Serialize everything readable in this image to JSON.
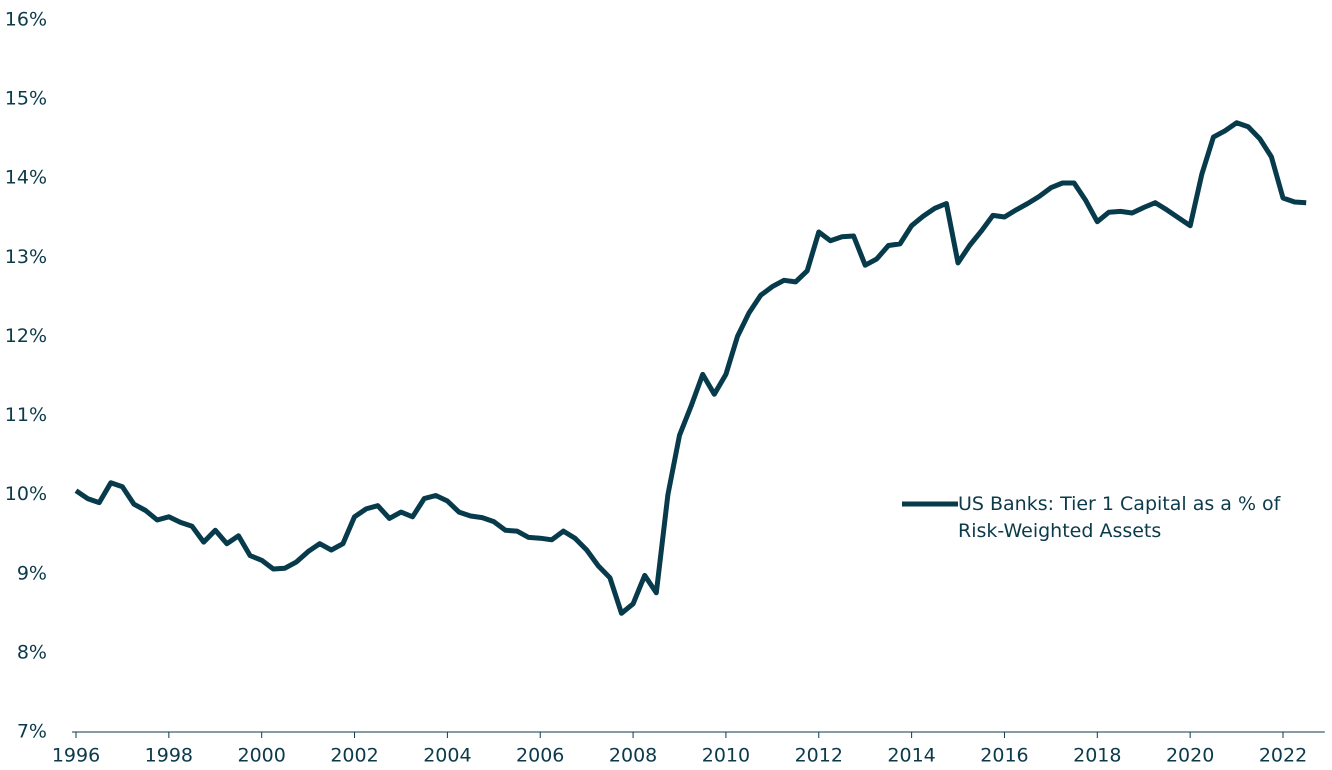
{
  "chart_data": {
    "type": "line",
    "x": [
      1996,
      1996.25,
      1996.5,
      1996.75,
      1997,
      1997.25,
      1997.5,
      1997.75,
      1998,
      1998.25,
      1998.5,
      1998.75,
      1999,
      1999.25,
      1999.5,
      1999.75,
      2000,
      2000.25,
      2000.5,
      2000.75,
      2001,
      2001.25,
      2001.5,
      2001.75,
      2002,
      2002.25,
      2002.5,
      2002.75,
      2003,
      2003.25,
      2003.5,
      2003.75,
      2004,
      2004.25,
      2004.5,
      2004.75,
      2005,
      2005.25,
      2005.5,
      2005.75,
      2006,
      2006.25,
      2006.5,
      2006.75,
      2007,
      2007.25,
      2007.5,
      2007.75,
      2008,
      2008.25,
      2008.5,
      2008.75,
      2009,
      2009.25,
      2009.5,
      2009.75,
      2010,
      2010.25,
      2010.5,
      2010.75,
      2011,
      2011.25,
      2011.5,
      2011.75,
      2012,
      2012.25,
      2012.5,
      2012.75,
      2013,
      2013.25,
      2013.5,
      2013.75,
      2014,
      2014.25,
      2014.5,
      2014.75,
      2015,
      2015.25,
      2015.5,
      2015.75,
      2016,
      2016.25,
      2016.5,
      2016.75,
      2017,
      2017.25,
      2017.5,
      2017.75,
      2018,
      2018.25,
      2018.5,
      2018.75,
      2019,
      2019.25,
      2019.5,
      2019.75,
      2020,
      2020.25,
      2020.5,
      2020.75,
      2021,
      2021.25,
      2021.5,
      2021.75,
      2022,
      2022.25,
      2022.5
    ],
    "series": [
      {
        "name": "US Banks: Tier 1 Capital as a % of Risk-Weighted Assets",
        "color": "#073b4c",
        "values": [
          10.05,
          9.95,
          9.9,
          10.15,
          10.1,
          9.88,
          9.8,
          9.68,
          9.72,
          9.65,
          9.6,
          9.4,
          9.55,
          9.38,
          9.48,
          9.23,
          9.17,
          9.06,
          9.07,
          9.15,
          9.28,
          9.38,
          9.3,
          9.38,
          9.72,
          9.82,
          9.86,
          9.7,
          9.78,
          9.72,
          9.95,
          9.99,
          9.92,
          9.78,
          9.73,
          9.71,
          9.66,
          9.55,
          9.54,
          9.46,
          9.45,
          9.43,
          9.54,
          9.45,
          9.3,
          9.1,
          8.95,
          8.5,
          8.62,
          8.98,
          8.76,
          10.0,
          10.75,
          11.12,
          11.52,
          11.27,
          11.52,
          12.0,
          12.3,
          12.52,
          12.63,
          12.71,
          12.69,
          12.83,
          13.32,
          13.21,
          13.26,
          13.27,
          12.9,
          12.98,
          13.15,
          13.17,
          13.4,
          13.52,
          13.62,
          13.68,
          12.93,
          13.15,
          13.33,
          13.53,
          13.51,
          13.6,
          13.68,
          13.77,
          13.88,
          13.94,
          13.94,
          13.72,
          13.45,
          13.57,
          13.58,
          13.56,
          13.63,
          13.69,
          13.6,
          13.5,
          13.4,
          14.05,
          14.52,
          14.6,
          14.7,
          14.65,
          14.5,
          14.27,
          13.75,
          13.7,
          13.69
        ]
      }
    ],
    "xlim": [
      1996,
      2022.9
    ],
    "xticks": [
      1996,
      1998,
      2000,
      2002,
      2004,
      2006,
      2008,
      2010,
      2012,
      2014,
      2016,
      2018,
      2020,
      2022
    ],
    "ylim": [
      7,
      16
    ],
    "yticks": [
      {
        "value": 7,
        "label": "7%"
      },
      {
        "value": 8,
        "label": "8%"
      },
      {
        "value": 9,
        "label": "9%"
      },
      {
        "value": 10,
        "label": "10%"
      },
      {
        "value": 11,
        "label": "11%"
      },
      {
        "value": 12,
        "label": "12%"
      },
      {
        "value": 13,
        "label": "13%"
      },
      {
        "value": 14,
        "label": "14%"
      },
      {
        "value": 15,
        "label": "15%"
      },
      {
        "value": 16,
        "label": "16%"
      }
    ],
    "grid": false,
    "legend": "right"
  }
}
